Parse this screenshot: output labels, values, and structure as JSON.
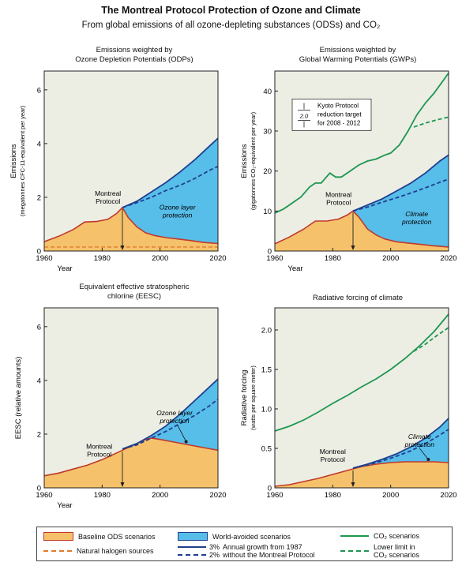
{
  "title": "The Montreal Protocol Protection of Ozone and Climate",
  "subtitle": "From global emissions of all ozone-depleting substances (ODSs) and CO₂",
  "colors": {
    "baseline_fill": "#f5c26b",
    "avoided_fill": "#57bde9",
    "background": "#eceee4",
    "baseline_edge": "#c0392b",
    "growth_line": "#1f3f8f",
    "co2_line": "#1e9650",
    "natural_line": "#e07a2c"
  },
  "panels": {
    "odp": {
      "title_line1": "Emissions weighted by",
      "title_line2": "Ozone Depletion Potentials (ODPs)",
      "ylabel": "Emissions",
      "ylabel_sub": "(megatonnes CFC-11-equivalent per year)",
      "xlabel": "Year",
      "annotation_mp": "Montreal\nProtocol",
      "annotation_prot": "Ozone layer\nprotection"
    },
    "gwp": {
      "title_line1": "Emissions weighted by",
      "title_line2": "Global Warming Potentials (GWPs)",
      "ylabel": "Emissions",
      "ylabel_sub": "(gigatonnes CO₂-equivalent per year)",
      "xlabel": "Year",
      "annotation_mp": "Montreal\nProtocol",
      "annotation_prot": "Climate\nprotection",
      "kyoto_line1": "Kyoto Protocol",
      "kyoto_line2": "reduction target",
      "kyoto_line3": "for 2008 - 2012",
      "kyoto_value": "2.0"
    },
    "eesc": {
      "title_line1": "Equivalent effective stratospheric",
      "title_line2": "chlorine (EESC)",
      "ylabel": "EESC (relative amounts)",
      "xlabel": "Year",
      "annotation_mp": "Montreal\nProtocol",
      "annotation_prot": "Ozone layer\nprotection"
    },
    "rf": {
      "title_line1": "Radiative forcing of climate",
      "title_line2": "",
      "ylabel": "Radiative forcing",
      "ylabel_sub": "(watts per square meter)",
      "xlabel": "",
      "annotation_mp": "Montreal\nProtocol",
      "annotation_prot": "Climate\nprotection"
    }
  },
  "legend": {
    "baseline": "Baseline ODS scenarios",
    "natural": "Natural halogen sources",
    "avoided": "World-avoided scenarios",
    "growth3": "3%",
    "growth2": "2%",
    "growth_text1": "Annual growth from 1987",
    "growth_text2": "without the Montreal Protocol",
    "co2": "CO₂ scenarios",
    "co2_lower1": "Lower limit in",
    "co2_lower2": "CO₂ scenarios"
  },
  "chart_data": [
    {
      "id": "odp",
      "type": "area",
      "xlim": [
        1960,
        2020
      ],
      "ylim": [
        0,
        6.7
      ],
      "xticks": [
        1960,
        1980,
        2000,
        2020
      ],
      "yticks": [
        0,
        2,
        4,
        6
      ],
      "baseline": {
        "x": [
          1960,
          1965,
          1970,
          1974,
          1978,
          1982,
          1985,
          1987,
          1989,
          1992,
          1995,
          1998,
          2002,
          2006,
          2010,
          2015,
          2020
        ],
        "y": [
          0.35,
          0.55,
          0.8,
          1.08,
          1.1,
          1.18,
          1.4,
          1.62,
          1.25,
          0.9,
          0.68,
          0.58,
          0.5,
          0.45,
          0.4,
          0.32,
          0.28
        ]
      },
      "growth3": {
        "x": [
          1987,
          1992,
          1997,
          2002,
          2007,
          2012,
          2017,
          2020
        ],
        "y": [
          1.62,
          1.85,
          2.2,
          2.55,
          2.95,
          3.4,
          3.9,
          4.2
        ]
      },
      "growth2": {
        "x": [
          1987,
          1992,
          1997,
          2002,
          2007,
          2012,
          2017,
          2020
        ],
        "y": [
          1.62,
          1.8,
          2.0,
          2.25,
          2.45,
          2.7,
          3.0,
          3.15
        ]
      },
      "natural": 0.15,
      "montreal_year": 1987
    },
    {
      "id": "gwp",
      "type": "area",
      "xlim": [
        1960,
        2020
      ],
      "ylim": [
        0,
        45
      ],
      "xticks": [
        1960,
        1980,
        2000,
        2020
      ],
      "yticks": [
        0,
        10,
        20,
        30,
        40
      ],
      "baseline": {
        "x": [
          1960,
          1965,
          1970,
          1974,
          1978,
          1982,
          1985,
          1987,
          1989,
          1992,
          1995,
          1998,
          2002,
          2006,
          2010,
          2015,
          2020
        ],
        "y": [
          1.8,
          3.5,
          5.5,
          7.5,
          7.5,
          8.0,
          9.0,
          10.0,
          8.5,
          5.5,
          4.0,
          3.0,
          2.3,
          2.0,
          1.7,
          1.3,
          1.0
        ]
      },
      "growth3": {
        "x": [
          1987,
          1992,
          1997,
          2002,
          2007,
          2012,
          2017,
          2020
        ],
        "y": [
          10,
          11.5,
          13,
          15,
          17,
          19.5,
          22.5,
          24
        ]
      },
      "growth2": {
        "x": [
          1987,
          1992,
          1997,
          2002,
          2007,
          2012,
          2017,
          2020
        ],
        "y": [
          10,
          11,
          12.2,
          13.3,
          14.5,
          15.8,
          17.2,
          18
        ]
      },
      "co2": {
        "x": [
          1960,
          1963,
          1966,
          1969,
          1972,
          1974,
          1976,
          1979,
          1981,
          1983,
          1986,
          1989,
          1992,
          1995,
          1998,
          2000,
          2003,
          2006,
          2009,
          2012,
          2015,
          2018,
          2020
        ],
        "y": [
          9.5,
          10.5,
          12,
          13.5,
          16,
          17,
          17,
          19.5,
          18.5,
          18.5,
          20,
          21.5,
          22.5,
          23,
          24,
          24.5,
          26.5,
          30,
          34,
          37,
          39.5,
          42.5,
          44.5
        ]
      },
      "co2_lower": {
        "x": [
          2008,
          2012,
          2016,
          2020
        ],
        "y": [
          31,
          32,
          32.8,
          33.5
        ]
      },
      "kyoto_reduction": 2.0,
      "montreal_year": 1987
    },
    {
      "id": "eesc",
      "type": "area",
      "xlim": [
        1960,
        2020
      ],
      "ylim": [
        0,
        6.7
      ],
      "xticks": [
        1960,
        1980,
        2000,
        2020
      ],
      "yticks": [
        0,
        2,
        4,
        6
      ],
      "baseline": {
        "x": [
          1960,
          1965,
          1970,
          1975,
          1980,
          1985,
          1990,
          1995,
          1997,
          2000,
          2005,
          2010,
          2015,
          2020
        ],
        "y": [
          0.45,
          0.55,
          0.7,
          0.85,
          1.05,
          1.3,
          1.55,
          1.8,
          1.85,
          1.8,
          1.7,
          1.6,
          1.5,
          1.4
        ]
      },
      "growth3": {
        "x": [
          1987,
          1992,
          1997,
          2002,
          2007,
          2012,
          2017,
          2020
        ],
        "y": [
          1.45,
          1.65,
          1.95,
          2.3,
          2.75,
          3.25,
          3.75,
          4.05
        ]
      },
      "growth2": {
        "x": [
          1987,
          1992,
          1997,
          2002,
          2007,
          2012,
          2017,
          2020
        ],
        "y": [
          1.45,
          1.6,
          1.85,
          2.1,
          2.4,
          2.7,
          3.05,
          3.3
        ]
      },
      "montreal_year": 1987
    },
    {
      "id": "rf",
      "type": "area",
      "xlim": [
        1960,
        2020
      ],
      "ylim": [
        0,
        2.28
      ],
      "xticks": [
        1960,
        1980,
        2000,
        2020
      ],
      "yticks": [
        0,
        0.5,
        1.0,
        1.5,
        2.0
      ],
      "ytick_labels": [
        "0",
        "0.5",
        "1.0",
        "1.5",
        "2.0"
      ],
      "baseline": {
        "x": [
          1960,
          1965,
          1970,
          1975,
          1980,
          1985,
          1990,
          1995,
          2000,
          2005,
          2010,
          2015,
          2020
        ],
        "y": [
          0.02,
          0.04,
          0.08,
          0.12,
          0.17,
          0.22,
          0.27,
          0.3,
          0.32,
          0.33,
          0.33,
          0.33,
          0.32
        ]
      },
      "growth3": {
        "x": [
          1987,
          1992,
          1997,
          2002,
          2007,
          2012,
          2017,
          2020
        ],
        "y": [
          0.25,
          0.3,
          0.36,
          0.43,
          0.52,
          0.63,
          0.77,
          0.88
        ]
      },
      "growth2": {
        "x": [
          1987,
          1992,
          1997,
          2002,
          2007,
          2012,
          2017,
          2020
        ],
        "y": [
          0.25,
          0.29,
          0.34,
          0.4,
          0.47,
          0.56,
          0.67,
          0.74
        ]
      },
      "co2": {
        "x": [
          1960,
          1965,
          1970,
          1975,
          1980,
          1985,
          1990,
          1995,
          2000,
          2005,
          2010,
          2015,
          2020
        ],
        "y": [
          0.72,
          0.78,
          0.86,
          0.96,
          1.07,
          1.17,
          1.28,
          1.38,
          1.5,
          1.64,
          1.8,
          1.98,
          2.2
        ]
      },
      "co2_lower": {
        "x": [
          2008,
          2012,
          2016,
          2020
        ],
        "y": [
          1.73,
          1.82,
          1.93,
          2.03
        ]
      },
      "montreal_year": 1987
    }
  ]
}
